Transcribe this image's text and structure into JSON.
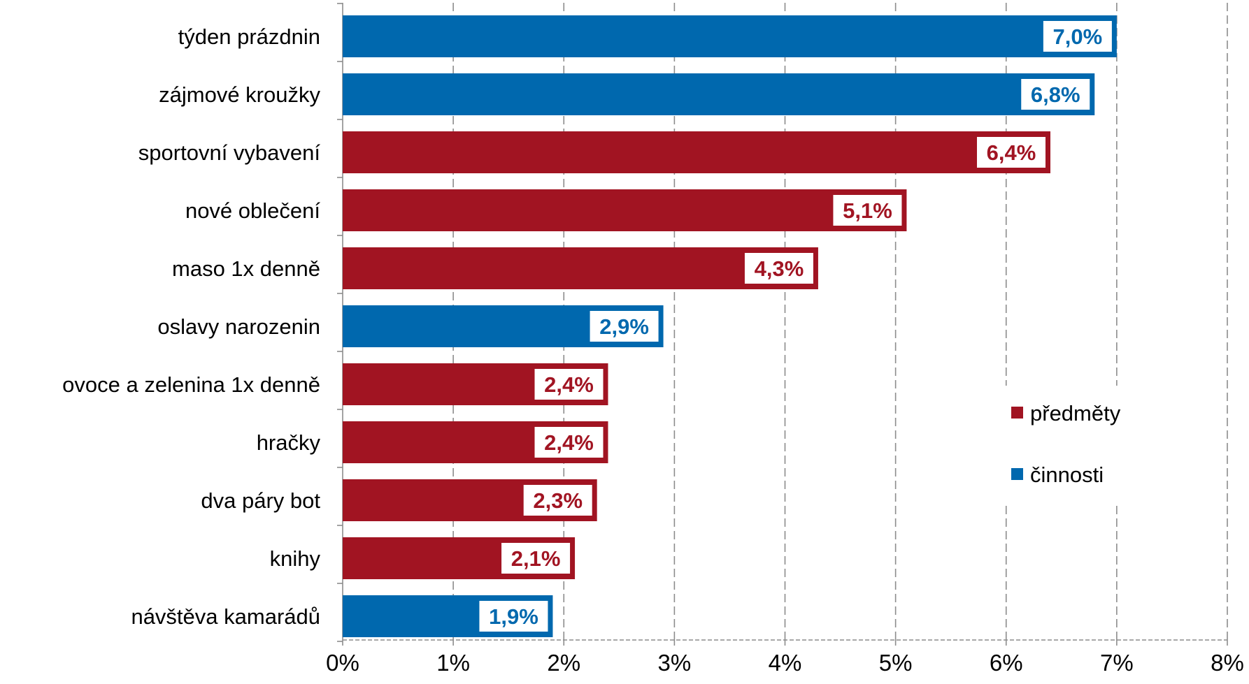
{
  "chart_data": {
    "type": "bar",
    "orientation": "horizontal",
    "categories": [
      "týden prázdnin",
      "zájmové kroužky",
      "sportovní vybavení",
      "nové oblečení",
      "maso 1x denně",
      "oslavy narozenin",
      "ovoce a zelenina 1x denně",
      "hračky",
      "dva páry bot",
      "knihy",
      "návštěva kamarádů"
    ],
    "values": [
      7.0,
      6.8,
      6.4,
      5.1,
      4.3,
      2.9,
      2.4,
      2.4,
      2.3,
      2.1,
      1.9
    ],
    "value_labels": [
      "7,0%",
      "6,8%",
      "6,4%",
      "5,1%",
      "4,3%",
      "2,9%",
      "2,4%",
      "2,4%",
      "2,3%",
      "2,1%",
      "1,9%"
    ],
    "groups": [
      "činnosti",
      "činnosti",
      "předměty",
      "předměty",
      "předměty",
      "činnosti",
      "předměty",
      "předměty",
      "předměty",
      "předměty",
      "činnosti"
    ],
    "legend": [
      {
        "name": "předměty",
        "color": "#a11422"
      },
      {
        "name": "činnosti",
        "color": "#0068ae"
      }
    ],
    "legend_position": "right",
    "x_ticks": [
      "0%",
      "1%",
      "2%",
      "3%",
      "4%",
      "5%",
      "6%",
      "7%",
      "8%"
    ],
    "xlim": [
      0,
      8
    ],
    "grid": "vertical dashed",
    "title": "",
    "xlabel": "",
    "ylabel": ""
  }
}
